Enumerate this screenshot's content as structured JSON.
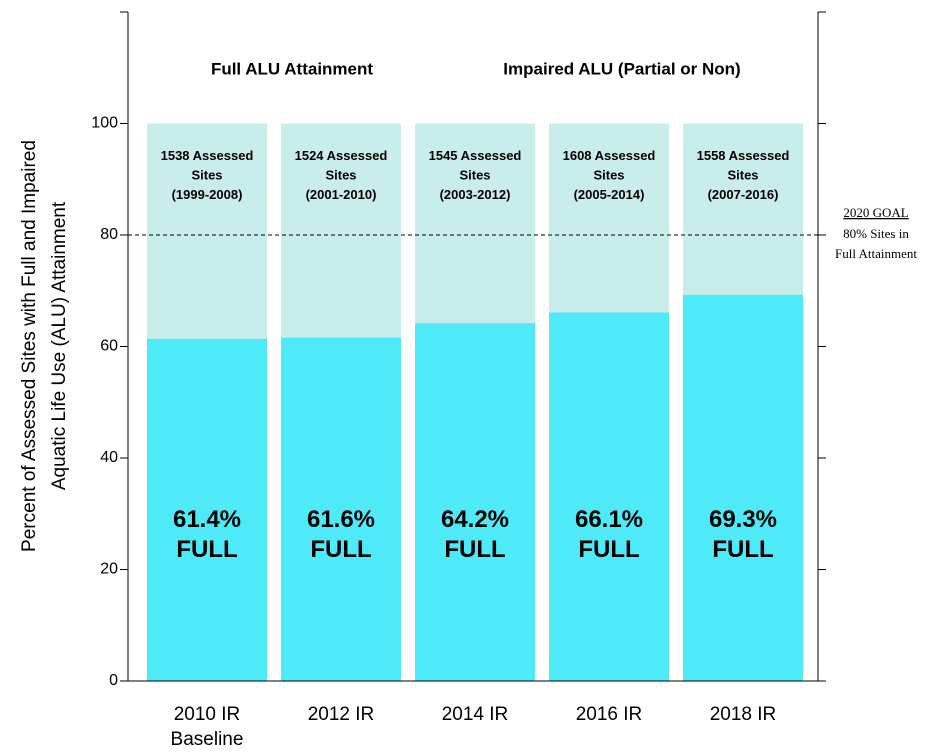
{
  "chart_data": {
    "type": "stacked_bar",
    "ylabel": "Percent of Assessed Sites with Full and Impaired\nAquatic Life Use (ALU) Attainment",
    "categories": [
      "2010 IR\nBaseline",
      "2012 IR",
      "2014 IR",
      "2016 IR",
      "2018 IR"
    ],
    "series": [
      {
        "name": "Full ALU Attainment",
        "color": "#4feaf8",
        "values": [
          61.4,
          61.6,
          64.2,
          66.1,
          69.3
        ],
        "value_labels": [
          "61.4%\nFULL",
          "61.6%\nFULL",
          "64.2%\nFULL",
          "66.1%\nFULL",
          "69.3%\nFULL"
        ]
      },
      {
        "name": "Impaired ALU (Partial or Non)",
        "color": "#c9edeb",
        "values": [
          38.6,
          38.4,
          35.8,
          33.9,
          30.7
        ]
      }
    ],
    "annotations": [
      "1538 Assessed\nSites\n(1999-2008)",
      "1524 Assessed\nSites\n(2001-2010)",
      "1545 Assessed\nSites\n(2003-2012)",
      "1608 Assessed\nSites\n(2005-2014)",
      "1558 Assessed\nSites\n(2007-2016)"
    ],
    "goal": {
      "value": 80,
      "label": "2020 GOAL",
      "note": "80% Sites in\nFull Attainment"
    },
    "ylim": [
      0,
      120
    ],
    "yticks": [
      0,
      20,
      40,
      60,
      80,
      100
    ],
    "legend": "top"
  }
}
